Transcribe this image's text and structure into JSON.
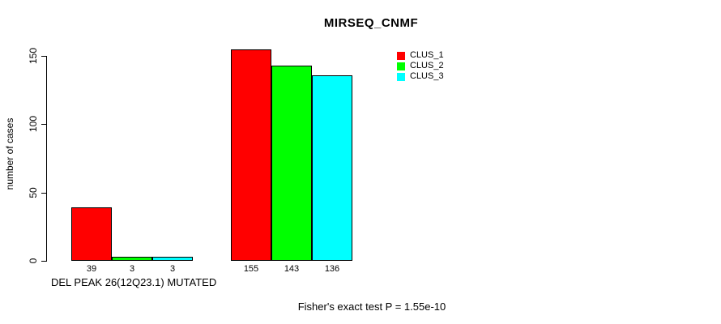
{
  "chart_data": {
    "type": "bar",
    "title": "MIRSEQ_CNMF",
    "ylabel": "number of cases",
    "xlabel": "DEL PEAK 26(12Q23.1) MUTATED",
    "annotation": "Fisher's exact test P = 1.55e-10",
    "yticks": [
      0,
      50,
      100,
      150
    ],
    "ylim": [
      0,
      155
    ],
    "grid": false,
    "legend_position": "top-right",
    "categories": [
      "DEL PEAK 26(12Q23.1) MUTATED",
      ""
    ],
    "series": [
      {
        "name": "CLUS_1",
        "color": "#ff0000",
        "values": [
          39,
          155
        ]
      },
      {
        "name": "CLUS_2",
        "color": "#00ff00",
        "values": [
          3,
          143
        ]
      },
      {
        "name": "CLUS_3",
        "color": "#00ffff",
        "values": [
          3,
          136
        ]
      }
    ],
    "bar_value_labels_shown": true
  }
}
